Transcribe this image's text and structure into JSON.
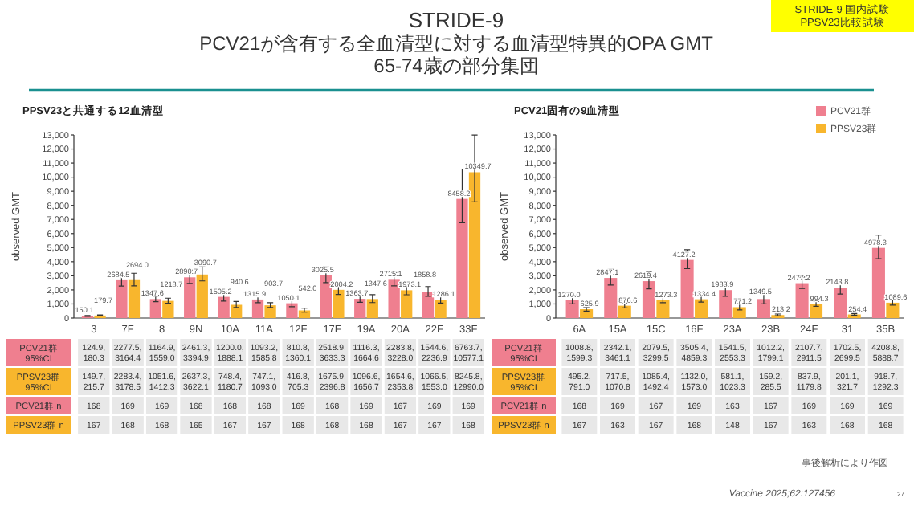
{
  "chart_data": [
    {
      "type": "bar",
      "title": "STRIDE-9\nPCV21が含有する全血清型に対する血清型特異的OPA GMT\n65-74歳の部分集団",
      "subtitle": "PPSV23と共通する12血清型",
      "ylabel": "observed GMT",
      "categories": [
        "3",
        "7F",
        "8",
        "9N",
        "10A",
        "11A",
        "12F",
        "17F",
        "19A",
        "20A",
        "22F",
        "33F"
      ],
      "series": [
        {
          "name": "PCV21群",
          "color": "#ef7f8f",
          "values": [
            150.1,
            2684.5,
            1347.6,
            2890.7,
            1505.2,
            1315.9,
            1050.1,
            3025.5,
            1363.7,
            2715.1,
            1858.8,
            8458.2
          ],
          "value_labels": [
            "150.1",
            "2684.5",
            "1347.6",
            "2890.7",
            "1505.2",
            "1315.9",
            "1050.1",
            "3025.5",
            "1363.7",
            "2715.1",
            "1858.8",
            "8458.2"
          ],
          "errors": [
            [
              124.9,
              180.3
            ],
            [
              2277.5,
              3164.4
            ],
            [
              1164.9,
              1559.0
            ],
            [
              2461.3,
              3394.9
            ],
            [
              1200.0,
              1888.1
            ],
            [
              1093.2,
              1585.8
            ],
            [
              810.8,
              1360.1
            ],
            [
              2518.9,
              3633.3
            ],
            [
              1116.3,
              1664.6
            ],
            [
              2283.8,
              3228.0
            ],
            [
              1544.6,
              2236.9
            ],
            [
              6763.7,
              10577.1
            ]
          ]
        },
        {
          "name": "PPSV23群",
          "color": "#f8b62d",
          "values": [
            179.7,
            2694.0,
            1218.7,
            3090.7,
            940.6,
            903.7,
            542.0,
            2004.2,
            1347.6,
            1973.1,
            1286.1,
            10349.7
          ],
          "value_labels": [
            "179.7",
            "2694.0",
            "1218.7",
            "3090.7",
            "940.6",
            "903.7",
            "542.0",
            "2004.2",
            "1347.6",
            "1973.1",
            "1286.1",
            "10349.7"
          ],
          "errors": [
            [
              149.7,
              215.7
            ],
            [
              2283.4,
              3178.5
            ],
            [
              1051.6,
              1412.3
            ],
            [
              2637.3,
              3622.1
            ],
            [
              748.4,
              1180.7
            ],
            [
              747.1,
              1093.0
            ],
            [
              416.8,
              705.3
            ],
            [
              1675.9,
              2396.8
            ],
            [
              1096.6,
              1656.7
            ],
            [
              1654.6,
              2353.8
            ],
            [
              1066.5,
              1553.0
            ],
            [
              8245.8,
              12990.0
            ]
          ]
        }
      ],
      "ylim": [
        0,
        13000
      ],
      "yticks": [
        0,
        {
          "value": 1000,
          "label": "1,000"
        },
        {
          "value": 2000,
          "label": "2,000"
        },
        {
          "value": 3000,
          "label": "3,000"
        },
        {
          "value": 4000,
          "label": "4,000"
        },
        {
          "value": 5000,
          "label": "5,000"
        },
        {
          "value": 6000,
          "label": "6,000"
        },
        {
          "value": 7000,
          "label": "7,000"
        },
        {
          "value": 8000,
          "label": "8,000"
        },
        {
          "value": 9000,
          "label": "9,000"
        },
        {
          "value": 10000,
          "label": "10,000"
        },
        {
          "value": 11000,
          "label": "11,000"
        },
        {
          "value": 12000,
          "label": "12,000"
        },
        {
          "value": 13000,
          "label": "13,000"
        }
      ],
      "annotations": [
        "95%CI",
        "n",
        "STRIDE-9 国内試験\nPPSV23比較試験",
        "124.9,\n180.3",
        "2277.5,\n3164.4",
        "1164.9,\n1559.0",
        "2461.3,\n3394.9",
        "1200.0,\n1888.1",
        "1093.2,\n1585.8",
        "810.8,\n1360.1",
        "2518.9,\n3633.3",
        "1116.3,\n1664.6",
        "2283.8,\n3228.0",
        "1544.6,\n2236.9",
        "6763.7,\n10577.1",
        "149.7,\n215.7",
        "2283.4,\n3178.5",
        "1051.6,\n1412.3",
        "2637.3,\n3622.1",
        "748.4,\n1180.7",
        "747.1,\n1093.0",
        "416.8,\n705.3",
        "1675.9,\n2396.8",
        "1096.6,\n1656.7",
        "1654.6,\n2353.8",
        "1066.5,\n1553.0",
        "8245.8,\n12990.0",
        "168",
        "169",
        "169",
        "168",
        "168",
        "168",
        "169",
        "168",
        "169",
        "167",
        "169",
        "169",
        "167",
        "168",
        "168",
        "165",
        "167",
        "167",
        "168",
        "168",
        "168",
        "167",
        "167",
        "168"
      ]
    },
    {
      "type": "bar",
      "title": "PCV21固有の9血清型",
      "ylabel": "observed GMT",
      "categories": [
        "6A",
        "15A",
        "15C",
        "16F",
        "23A",
        "23B",
        "24F",
        "31",
        "35B"
      ],
      "series": [
        {
          "name": "PCV21群",
          "color": "#ef7f8f",
          "values": [
            1270.0,
            2847.1,
            2619.4,
            4127.2,
            1983.9,
            1349.5,
            2477.2,
            2143.8,
            4978.3
          ],
          "value_labels": [
            "1270.0",
            "2847.1",
            "2619.4",
            "4127.2",
            "1983.9",
            "1349.5",
            "2477.2",
            "2143.8",
            "4978.3"
          ],
          "errors": [
            [
              1008.8,
              1599.3
            ],
            [
              2342.1,
              3461.1
            ],
            [
              2079.5,
              3299.5
            ],
            [
              3505.4,
              4859.3
            ],
            [
              1541.5,
              2553.3
            ],
            [
              1012.2,
              1799.1
            ],
            [
              2107.7,
              2911.5
            ],
            [
              1702.5,
              2699.5
            ],
            [
              4208.8,
              5888.7
            ]
          ]
        },
        {
          "name": "PPSV23群",
          "color": "#f8b62d",
          "values": [
            625.9,
            876.6,
            1273.3,
            1334.4,
            771.2,
            213.2,
            994.3,
            254.4,
            1089.6
          ],
          "value_labels": [
            "625.9",
            "876.6",
            "1273.3",
            "1334.4",
            "771.2",
            "213.2",
            "994.3",
            "254.4",
            "1089.6"
          ],
          "errors": [
            [
              495.2,
              791.0
            ],
            [
              717.5,
              1070.8
            ],
            [
              1085.4,
              1492.4
            ],
            [
              1132.0,
              1573.0
            ],
            [
              581.1,
              1023.3
            ],
            [
              159.2,
              285.5
            ],
            [
              837.9,
              1179.8
            ],
            [
              201.1,
              321.7
            ],
            [
              918.7,
              1292.3
            ]
          ]
        }
      ],
      "ylim": [
        0,
        13000
      ],
      "yticks": [
        0,
        {
          "value": 1000,
          "label": "1,000"
        },
        {
          "value": 2000,
          "label": "2,000"
        },
        {
          "value": 3000,
          "label": "3,000"
        },
        {
          "value": 4000,
          "label": "4,000"
        },
        {
          "value": 5000,
          "label": "5,000"
        },
        {
          "value": 6000,
          "label": "6,000"
        },
        {
          "value": 7000,
          "label": "7,000"
        },
        {
          "value": 8000,
          "label": "8,000"
        },
        {
          "value": 9000,
          "label": "9,000"
        },
        {
          "value": 10000,
          "label": "10,000"
        },
        {
          "value": 11000,
          "label": "11,000"
        },
        {
          "value": 12000,
          "label": "12,000"
        },
        {
          "value": 13000,
          "label": "13,000"
        }
      ],
      "legend": "top right",
      "annotations": [
        "95%CI",
        "n",
        "事後解析により作図",
        "Vaccine 2025;62:127456",
        "27",
        "1008.8,\n1599.3",
        "2342.1,\n3461.1",
        "2079.5,\n3299.5",
        "3505.4,\n4859.3",
        "1541.5,\n2553.3",
        "1012.2,\n1799.1",
        "2107.7,\n2911.5",
        "1702.5,\n2699.5",
        "4208.8,\n5888.7",
        "495.2,\n791.0",
        "717.5,\n1070.8",
        "1085.4,\n1492.4",
        "1132.0,\n1573.0",
        "581.1,\n1023.3",
        "159.2,\n285.5",
        "837.9,\n1179.8",
        "201.1,\n321.7",
        "918.7,\n1292.3",
        "168",
        "169",
        "167",
        "169",
        "163",
        "167",
        "169",
        "169",
        "169",
        "167",
        "163",
        "167",
        "168",
        "148",
        "167",
        "163",
        "168",
        "168"
      ]
    }
  ]
}
